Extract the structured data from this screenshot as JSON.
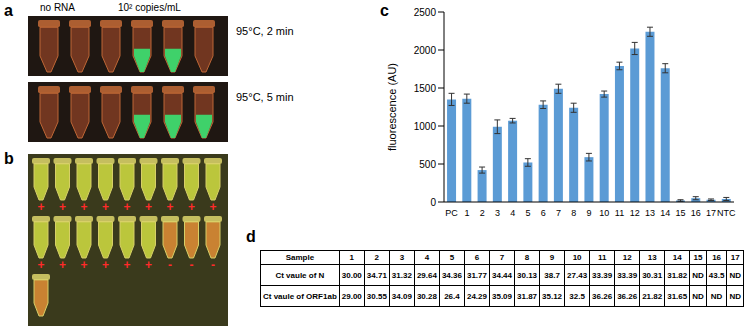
{
  "panel_labels": [
    "a",
    "b",
    "c",
    "d"
  ],
  "panel_a": {
    "column_labels": [
      "no RNA",
      "10² copies/mL"
    ],
    "row_labels": [
      "95°C, 2 min",
      "95°C, 5 min"
    ]
  },
  "panel_b": {
    "signs": [
      [
        "+",
        "+",
        "+",
        "+",
        "+",
        "+",
        "+",
        "+",
        "+"
      ],
      [
        "+",
        "+",
        "+",
        "+",
        "+",
        "+",
        "-",
        "-",
        "-"
      ]
    ]
  },
  "chart_data": {
    "type": "bar",
    "y_label": "fluorescence (AU)",
    "categories": [
      "PC",
      "1",
      "2",
      "3",
      "4",
      "5",
      "6",
      "7",
      "8",
      "9",
      "10",
      "11",
      "12",
      "13",
      "14",
      "15",
      "16",
      "17",
      "NTC"
    ],
    "values": [
      1350,
      1360,
      420,
      990,
      1070,
      520,
      1280,
      1490,
      1240,
      590,
      1420,
      1790,
      2020,
      2240,
      1760,
      20,
      50,
      30,
      40
    ],
    "errors": [
      80,
      60,
      40,
      90,
      30,
      50,
      50,
      60,
      60,
      50,
      40,
      50,
      80,
      60,
      60,
      10,
      20,
      10,
      20
    ],
    "color": "#5b9bd5",
    "ylim": [
      0,
      2500
    ],
    "yticks": [
      0,
      500,
      1000,
      1500,
      2000,
      2500
    ],
    "grid": false
  },
  "table": {
    "header": [
      "Sample",
      "1",
      "2",
      "3",
      "4",
      "5",
      "6",
      "7",
      "8",
      "9",
      "10",
      "11",
      "12",
      "13",
      "14",
      "15",
      "16",
      "17"
    ],
    "rows": [
      [
        "Ct vaule of N",
        "30.00",
        "34.71",
        "31.32",
        "29.64",
        "34.36",
        "31.77",
        "34.44",
        "30.13",
        "38.7",
        "27.43",
        "33.39",
        "33.39",
        "30.31",
        "31.82",
        "ND",
        "43.5",
        "ND"
      ],
      [
        "Ct vaule of ORF1ab",
        "29.00",
        "30.55",
        "34.09",
        "30.28",
        "26.4",
        "24.29",
        "35.09",
        "31.87",
        "35.12",
        "32.5",
        "36.26",
        "36.26",
        "21.82",
        "31.65",
        "ND",
        "ND",
        "ND"
      ]
    ]
  }
}
